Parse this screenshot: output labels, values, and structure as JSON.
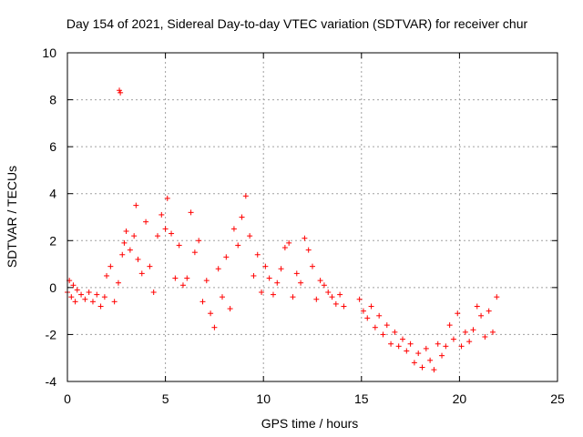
{
  "chart_data": {
    "type": "scatter",
    "title": "Day 154 of 2021, Sidereal Day-to-day VTEC variation (SDTVAR) for receiver chur",
    "xlabel": "GPS time / hours",
    "ylabel": "SDTVAR / TECUs",
    "xlim": [
      0,
      25
    ],
    "ylim": [
      -4,
      10
    ],
    "xticks": [
      0,
      5,
      10,
      15,
      20,
      25
    ],
    "yticks": [
      -4,
      -2,
      0,
      2,
      4,
      6,
      8,
      10
    ],
    "xtick_labels": [
      "0",
      "5",
      "10",
      "15",
      "20",
      "25"
    ],
    "ytick_labels": [
      "-4",
      "-2",
      "0",
      "2",
      "4",
      "6",
      "8",
      "10"
    ],
    "grid": true,
    "marker": "+",
    "color": "#ff0000",
    "series": [
      {
        "name": "SDTVAR",
        "x": [
          0.0,
          0.1,
          0.2,
          0.3,
          0.4,
          0.5,
          0.7,
          0.9,
          1.1,
          1.3,
          1.5,
          1.7,
          1.9,
          2.0,
          2.2,
          2.4,
          2.6,
          2.65,
          2.7,
          2.8,
          2.9,
          3.0,
          3.2,
          3.4,
          3.5,
          3.6,
          3.8,
          4.0,
          4.2,
          4.4,
          4.6,
          4.8,
          5.0,
          5.1,
          5.3,
          5.5,
          5.7,
          5.9,
          6.1,
          6.3,
          6.5,
          6.7,
          6.9,
          7.1,
          7.3,
          7.5,
          7.7,
          7.9,
          8.1,
          8.3,
          8.5,
          8.7,
          8.9,
          9.1,
          9.3,
          9.5,
          9.7,
          9.9,
          10.1,
          10.3,
          10.5,
          10.7,
          10.9,
          11.1,
          11.3,
          11.5,
          11.7,
          11.9,
          12.1,
          12.3,
          12.5,
          12.7,
          12.9,
          13.1,
          13.3,
          13.5,
          13.7,
          13.9,
          14.1,
          14.9,
          15.1,
          15.3,
          15.5,
          15.7,
          15.9,
          16.1,
          16.3,
          16.5,
          16.7,
          16.9,
          17.1,
          17.3,
          17.5,
          17.7,
          17.9,
          18.1,
          18.3,
          18.5,
          18.7,
          18.9,
          19.1,
          19.3,
          19.5,
          19.7,
          19.9,
          20.1,
          20.3,
          20.5,
          20.7,
          20.9,
          21.1,
          21.3,
          21.5,
          21.7,
          21.9
        ],
        "y": [
          -0.2,
          0.3,
          -0.4,
          0.1,
          -0.6,
          -0.1,
          -0.3,
          -0.5,
          -0.2,
          -0.6,
          -0.3,
          -0.8,
          -0.4,
          0.5,
          0.9,
          -0.6,
          0.2,
          8.4,
          8.3,
          1.4,
          1.9,
          2.4,
          1.6,
          2.2,
          3.5,
          1.2,
          0.6,
          2.8,
          0.9,
          -0.2,
          2.2,
          3.1,
          2.5,
          3.8,
          2.3,
          0.4,
          1.8,
          0.1,
          0.4,
          3.2,
          1.5,
          2.0,
          -0.6,
          0.3,
          -1.1,
          -1.7,
          0.8,
          -0.4,
          1.3,
          -0.9,
          2.5,
          1.8,
          3.0,
          3.9,
          2.2,
          0.5,
          1.4,
          -0.2,
          0.9,
          0.4,
          -0.3,
          0.2,
          0.8,
          1.7,
          1.9,
          -0.4,
          0.6,
          0.2,
          2.1,
          1.6,
          0.9,
          -0.5,
          0.3,
          0.1,
          -0.2,
          -0.4,
          -0.7,
          -0.3,
          -0.8,
          -0.5,
          -1.0,
          -1.3,
          -0.8,
          -1.7,
          -1.2,
          -2.0,
          -1.6,
          -2.4,
          -1.9,
          -2.5,
          -2.2,
          -2.7,
          -2.4,
          -3.2,
          -2.8,
          -3.4,
          -2.6,
          -3.1,
          -3.5,
          -2.4,
          -2.9,
          -2.5,
          -1.6,
          -2.2,
          -1.1,
          -2.5,
          -1.9,
          -2.3,
          -1.8,
          -0.8,
          -1.2,
          -2.1,
          -1.0,
          -1.9,
          -0.4
        ]
      }
    ]
  }
}
